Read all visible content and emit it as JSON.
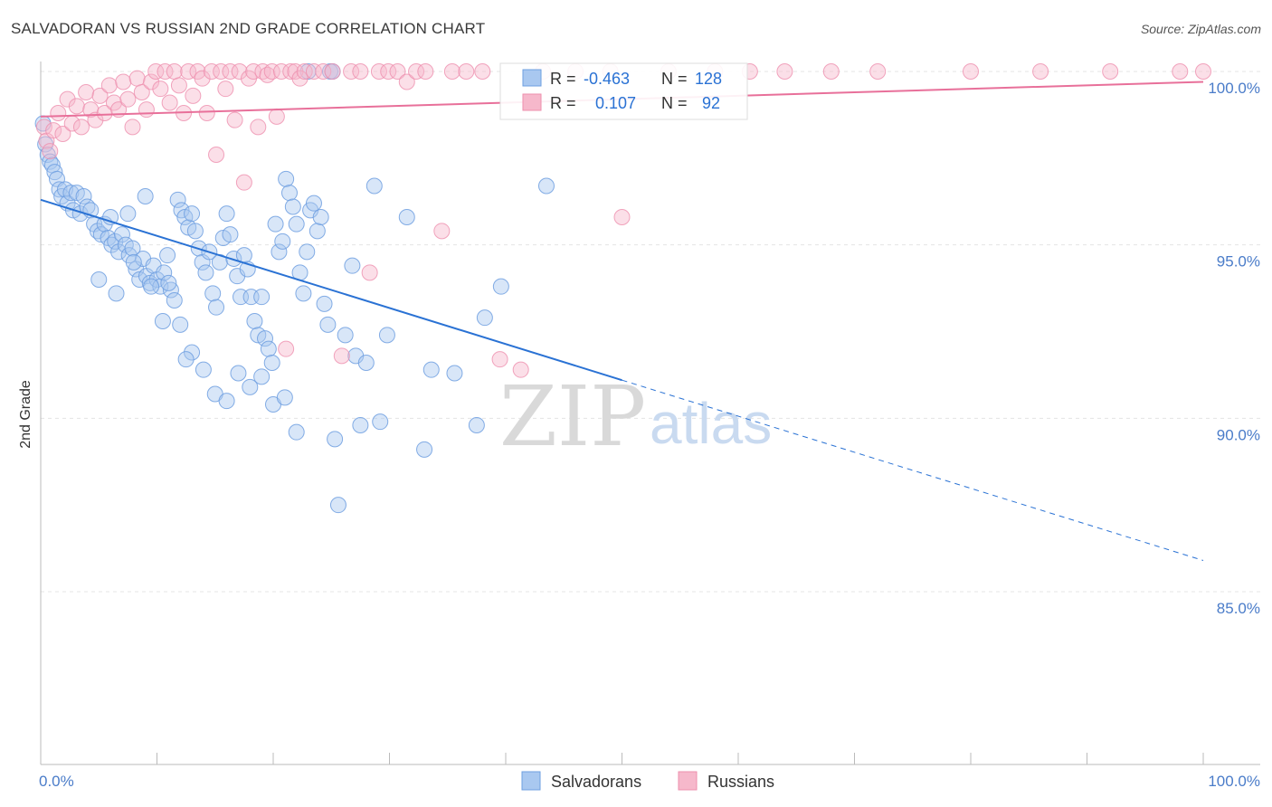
{
  "header": {
    "title": "SALVADORAN VS RUSSIAN 2ND GRADE CORRELATION CHART",
    "source": "Source: ZipAtlas.com"
  },
  "watermark": {
    "zip": "ZIP",
    "atlas": "atlas"
  },
  "legend": {
    "rows": [
      {
        "r_label": "R =",
        "r_value": "-0.463",
        "n_label": "N =",
        "n_value": "128"
      },
      {
        "r_label": "R =",
        "r_value": "0.107",
        "n_label": "N =",
        "n_value": "92"
      }
    ]
  },
  "bottom_legend": {
    "series1": "Salvadorans",
    "series2": "Russians"
  },
  "colors": {
    "blue_fill": "#a9c8f0",
    "blue_stroke": "#6e9fe0",
    "blue_line": "#2a72d4",
    "pink_fill": "#f6b8cb",
    "pink_stroke": "#ee8fae",
    "pink_line": "#e8709a",
    "tick_text": "#4a7cc9",
    "grid": "#e4e4e4"
  },
  "chart_data": {
    "type": "scatter",
    "title": "SALVADORAN VS RUSSIAN 2ND GRADE CORRELATION CHART",
    "xlabel": "",
    "ylabel": "2nd Grade",
    "xlim": [
      0,
      100
    ],
    "ylim": [
      80,
      100.5
    ],
    "x_tick_labels": [
      "0.0%",
      "100.0%"
    ],
    "y_ticks": [
      85,
      90,
      95,
      100
    ],
    "y_tick_labels": [
      "85.0%",
      "90.0%",
      "95.0%",
      "100.0%"
    ],
    "legend_position": "top-center",
    "series": [
      {
        "name": "Salvadorans",
        "R": -0.463,
        "N": 128,
        "trend": {
          "x0": 0,
          "y0": 96.3,
          "x1": 50,
          "y1": 91.1,
          "x_dashed_end": 100,
          "y_dashed_end": 85.9
        },
        "points": [
          [
            0.2,
            98.5
          ],
          [
            0.4,
            97.9
          ],
          [
            0.6,
            97.6
          ],
          [
            0.8,
            97.4
          ],
          [
            1.0,
            97.3
          ],
          [
            1.2,
            97.1
          ],
          [
            1.4,
            96.9
          ],
          [
            1.6,
            96.6
          ],
          [
            1.8,
            96.4
          ],
          [
            2.1,
            96.6
          ],
          [
            2.3,
            96.2
          ],
          [
            2.6,
            96.5
          ],
          [
            2.8,
            96.0
          ],
          [
            3.1,
            96.5
          ],
          [
            3.4,
            95.9
          ],
          [
            3.7,
            96.4
          ],
          [
            4.0,
            96.1
          ],
          [
            4.3,
            96.0
          ],
          [
            4.6,
            95.6
          ],
          [
            4.9,
            95.4
          ],
          [
            5.2,
            95.3
          ],
          [
            5.5,
            95.6
          ],
          [
            5.8,
            95.2
          ],
          [
            6.1,
            95.0
          ],
          [
            6.4,
            95.1
          ],
          [
            6.7,
            94.8
          ],
          [
            7.0,
            95.3
          ],
          [
            7.3,
            95.0
          ],
          [
            7.6,
            94.7
          ],
          [
            7.9,
            94.9
          ],
          [
            8.2,
            94.3
          ],
          [
            8.5,
            94.0
          ],
          [
            8.8,
            94.6
          ],
          [
            9.1,
            94.1
          ],
          [
            9.4,
            93.9
          ],
          [
            9.7,
            94.4
          ],
          [
            10.0,
            94.0
          ],
          [
            10.3,
            93.8
          ],
          [
            10.6,
            94.2
          ],
          [
            10.9,
            94.7
          ],
          [
            11.2,
            93.7
          ],
          [
            11.5,
            93.4
          ],
          [
            11.8,
            96.3
          ],
          [
            12.1,
            96.0
          ],
          [
            12.4,
            95.8
          ],
          [
            12.7,
            95.5
          ],
          [
            13.0,
            95.9
          ],
          [
            13.3,
            95.4
          ],
          [
            13.6,
            94.9
          ],
          [
            13.9,
            94.5
          ],
          [
            14.2,
            94.2
          ],
          [
            14.5,
            94.8
          ],
          [
            14.8,
            93.6
          ],
          [
            15.1,
            93.2
          ],
          [
            15.4,
            94.5
          ],
          [
            15.7,
            95.2
          ],
          [
            16.0,
            95.9
          ],
          [
            16.3,
            95.3
          ],
          [
            16.6,
            94.6
          ],
          [
            16.9,
            94.1
          ],
          [
            17.2,
            93.5
          ],
          [
            17.5,
            94.7
          ],
          [
            17.8,
            94.3
          ],
          [
            18.1,
            93.5
          ],
          [
            18.4,
            92.8
          ],
          [
            18.7,
            92.4
          ],
          [
            19.0,
            93.5
          ],
          [
            19.3,
            92.3
          ],
          [
            19.6,
            92.0
          ],
          [
            19.9,
            91.6
          ],
          [
            20.2,
            95.6
          ],
          [
            20.5,
            94.8
          ],
          [
            20.8,
            95.1
          ],
          [
            21.1,
            96.9
          ],
          [
            21.4,
            96.5
          ],
          [
            21.7,
            96.1
          ],
          [
            22.0,
            95.6
          ],
          [
            22.3,
            94.2
          ],
          [
            22.6,
            93.6
          ],
          [
            22.9,
            94.8
          ],
          [
            23.2,
            96.0
          ],
          [
            23.5,
            96.2
          ],
          [
            23.8,
            95.4
          ],
          [
            24.1,
            95.8
          ],
          [
            24.4,
            93.3
          ],
          [
            24.7,
            92.7
          ],
          [
            25.3,
            89.4
          ],
          [
            25.6,
            87.5
          ],
          [
            26.2,
            92.4
          ],
          [
            26.8,
            94.4
          ],
          [
            27.1,
            91.8
          ],
          [
            27.5,
            89.8
          ],
          [
            28.0,
            91.6
          ],
          [
            28.7,
            96.7
          ],
          [
            29.2,
            89.9
          ],
          [
            29.8,
            92.4
          ],
          [
            31.5,
            95.8
          ],
          [
            33.0,
            89.1
          ],
          [
            33.6,
            91.4
          ],
          [
            35.6,
            91.3
          ],
          [
            37.5,
            89.8
          ],
          [
            38.2,
            92.9
          ],
          [
            39.6,
            93.8
          ],
          [
            43.5,
            96.7
          ],
          [
            24.9,
            100.0
          ],
          [
            23.0,
            100.0
          ],
          [
            25.1,
            100.0
          ],
          [
            6.0,
            95.8
          ],
          [
            7.5,
            95.9
          ],
          [
            9.0,
            96.4
          ],
          [
            11.0,
            93.9
          ],
          [
            12.0,
            92.7
          ],
          [
            13.0,
            91.9
          ],
          [
            14.0,
            91.4
          ],
          [
            15.0,
            90.7
          ],
          [
            16.0,
            90.5
          ],
          [
            17.0,
            91.3
          ],
          [
            18.0,
            90.9
          ],
          [
            19.0,
            91.2
          ],
          [
            20.0,
            90.4
          ],
          [
            21.0,
            90.6
          ],
          [
            22.0,
            89.6
          ],
          [
            5.0,
            94.0
          ],
          [
            6.5,
            93.6
          ],
          [
            8.0,
            94.5
          ],
          [
            9.5,
            93.8
          ],
          [
            10.5,
            92.8
          ],
          [
            12.5,
            91.7
          ]
        ]
      },
      {
        "name": "Russians",
        "R": 0.107,
        "N": 92,
        "trend": {
          "x0": 0,
          "y0": 98.7,
          "x1": 100,
          "y1": 99.7
        },
        "points": [
          [
            0.3,
            98.4
          ],
          [
            0.5,
            98.0
          ],
          [
            0.8,
            97.7
          ],
          [
            1.1,
            98.3
          ],
          [
            1.5,
            98.8
          ],
          [
            1.9,
            98.2
          ],
          [
            2.3,
            99.2
          ],
          [
            2.7,
            98.5
          ],
          [
            3.1,
            99.0
          ],
          [
            3.5,
            98.4
          ],
          [
            3.9,
            99.4
          ],
          [
            4.3,
            98.9
          ],
          [
            4.7,
            98.6
          ],
          [
            5.1,
            99.3
          ],
          [
            5.5,
            98.8
          ],
          [
            5.9,
            99.6
          ],
          [
            6.3,
            99.1
          ],
          [
            6.7,
            98.9
          ],
          [
            7.1,
            99.7
          ],
          [
            7.5,
            99.2
          ],
          [
            7.9,
            98.4
          ],
          [
            8.3,
            99.8
          ],
          [
            8.7,
            99.4
          ],
          [
            9.1,
            98.9
          ],
          [
            9.5,
            99.7
          ],
          [
            9.9,
            100.0
          ],
          [
            10.3,
            99.5
          ],
          [
            10.7,
            100.0
          ],
          [
            11.1,
            99.1
          ],
          [
            11.5,
            100.0
          ],
          [
            11.9,
            99.6
          ],
          [
            12.3,
            98.8
          ],
          [
            12.7,
            100.0
          ],
          [
            13.1,
            99.3
          ],
          [
            13.5,
            100.0
          ],
          [
            13.9,
            99.8
          ],
          [
            14.3,
            98.8
          ],
          [
            14.7,
            100.0
          ],
          [
            15.1,
            97.6
          ],
          [
            15.5,
            100.0
          ],
          [
            15.9,
            99.5
          ],
          [
            16.3,
            100.0
          ],
          [
            16.7,
            98.6
          ],
          [
            17.1,
            100.0
          ],
          [
            17.5,
            96.8
          ],
          [
            17.9,
            99.8
          ],
          [
            18.3,
            100.0
          ],
          [
            18.7,
            98.4
          ],
          [
            19.1,
            100.0
          ],
          [
            19.5,
            99.9
          ],
          [
            19.9,
            100.0
          ],
          [
            20.3,
            98.7
          ],
          [
            20.7,
            100.0
          ],
          [
            21.1,
            92.0
          ],
          [
            21.5,
            100.0
          ],
          [
            21.9,
            100.0
          ],
          [
            22.3,
            99.8
          ],
          [
            22.7,
            100.0
          ],
          [
            23.5,
            100.0
          ],
          [
            24.3,
            100.0
          ],
          [
            25.1,
            100.0
          ],
          [
            25.9,
            91.8
          ],
          [
            26.7,
            100.0
          ],
          [
            27.5,
            100.0
          ],
          [
            28.3,
            94.2
          ],
          [
            29.1,
            100.0
          ],
          [
            29.9,
            100.0
          ],
          [
            30.7,
            100.0
          ],
          [
            31.5,
            99.7
          ],
          [
            32.3,
            100.0
          ],
          [
            33.1,
            100.0
          ],
          [
            34.5,
            95.4
          ],
          [
            35.4,
            100.0
          ],
          [
            36.6,
            100.0
          ],
          [
            38.0,
            100.0
          ],
          [
            39.5,
            91.7
          ],
          [
            41.3,
            91.4
          ],
          [
            43.2,
            100.0
          ],
          [
            46.0,
            100.0
          ],
          [
            49.0,
            100.0
          ],
          [
            50.0,
            95.8
          ],
          [
            54.0,
            100.0
          ],
          [
            58.0,
            100.0
          ],
          [
            61.0,
            100.0
          ],
          [
            64.0,
            100.0
          ],
          [
            68.0,
            100.0
          ],
          [
            72.0,
            100.0
          ],
          [
            80.0,
            100.0
          ],
          [
            86.0,
            100.0
          ],
          [
            92.0,
            100.0
          ],
          [
            98.0,
            100.0
          ],
          [
            100.0,
            100.0
          ]
        ]
      }
    ]
  }
}
